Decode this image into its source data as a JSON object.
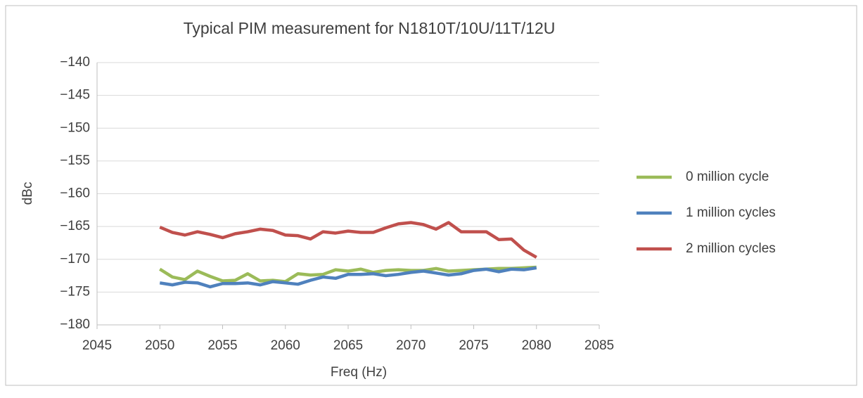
{
  "chart_data": {
    "type": "line",
    "title": "Typical PIM measurement for N1810T/10U/11T/12U",
    "xlabel": "Freq (Hz)",
    "ylabel": "dBc",
    "x": [
      2050,
      2051,
      2052,
      2053,
      2054,
      2055,
      2056,
      2057,
      2058,
      2059,
      2060,
      2061,
      2062,
      2063,
      2064,
      2065,
      2066,
      2067,
      2068,
      2069,
      2070,
      2071,
      2072,
      2073,
      2074,
      2075,
      2076,
      2077,
      2078,
      2079,
      2080
    ],
    "series": [
      {
        "name": "0 million cycle",
        "color": "#9bbb59",
        "values": [
          -171.5,
          -172.7,
          -173.1,
          -171.8,
          -172.6,
          -173.3,
          -173.2,
          -172.2,
          -173.3,
          -173.2,
          -173.4,
          -172.2,
          -172.4,
          -172.3,
          -171.6,
          -171.8,
          -171.5,
          -172.0,
          -171.7,
          -171.6,
          -171.7,
          -171.7,
          -171.4,
          -171.8,
          -171.7,
          -171.6,
          -171.5,
          -171.4,
          -171.4,
          -171.3,
          -171.2
        ]
      },
      {
        "name": "1 million cycles",
        "color": "#4f81bd",
        "values": [
          -173.6,
          -173.9,
          -173.5,
          -173.6,
          -174.2,
          -173.7,
          -173.7,
          -173.6,
          -173.9,
          -173.4,
          -173.6,
          -173.8,
          -173.2,
          -172.7,
          -172.9,
          -172.3,
          -172.3,
          -172.2,
          -172.5,
          -172.3,
          -172.0,
          -171.8,
          -172.1,
          -172.4,
          -172.2,
          -171.7,
          -171.5,
          -171.9,
          -171.5,
          -171.6,
          -171.3
        ]
      },
      {
        "name": "2 million cycles",
        "color": "#c0504d",
        "values": [
          -165.1,
          -165.9,
          -166.3,
          -165.8,
          -166.2,
          -166.7,
          -166.1,
          -165.8,
          -165.4,
          -165.6,
          -166.3,
          -166.4,
          -166.9,
          -165.8,
          -166.0,
          -165.7,
          -165.9,
          -165.9,
          -165.2,
          -164.6,
          -164.4,
          -164.7,
          -165.4,
          -164.4,
          -165.8,
          -165.8,
          -165.8,
          -167.0,
          -166.9,
          -168.6,
          -169.7
        ]
      }
    ],
    "xlim": [
      2045,
      2085
    ],
    "xticks": [
      2045,
      2050,
      2055,
      2060,
      2065,
      2070,
      2075,
      2080,
      2085
    ],
    "ylim": [
      -180,
      -140
    ],
    "yticks": [
      {
        "value": -180,
        "label": "−180"
      },
      {
        "value": -175,
        "label": "−175"
      },
      {
        "value": -170,
        "label": "−170"
      },
      {
        "value": -165,
        "label": "−165"
      },
      {
        "value": -160,
        "label": "−160"
      },
      {
        "value": -155,
        "label": "−155"
      },
      {
        "value": -150,
        "label": "−150"
      },
      {
        "value": -145,
        "label": "−145"
      },
      {
        "value": -140,
        "label": "−140"
      }
    ],
    "grid": true,
    "legend": "right"
  }
}
